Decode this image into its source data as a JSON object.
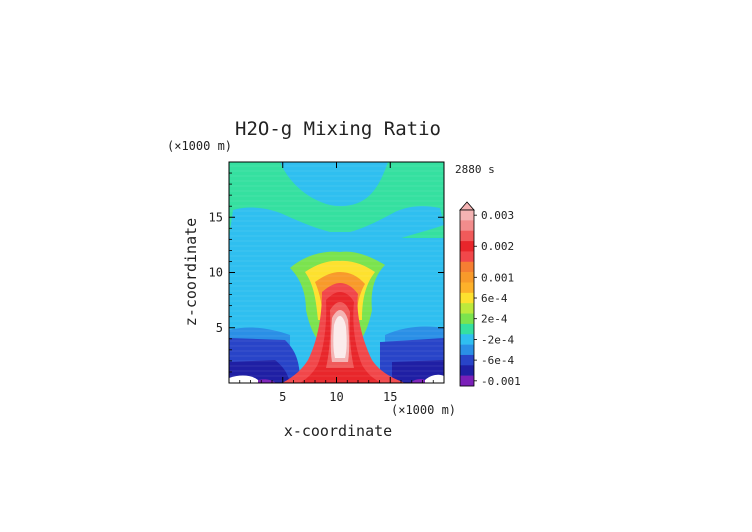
{
  "chart_data": {
    "type": "heatmap",
    "title": "H2O-g Mixing Ratio",
    "xlabel": "x-coordinate",
    "ylabel": "z-coordinate",
    "x_unit": "(×1000 m)",
    "y_unit": "(×1000 m)",
    "time_label": "2880 s",
    "xlim": [
      0,
      20
    ],
    "ylim": [
      0,
      20
    ],
    "x_ticks": [
      5,
      10,
      15
    ],
    "y_ticks": [
      5,
      10,
      15
    ],
    "grid": false,
    "legend_position": "right",
    "colorbar": {
      "levels": [
        {
          "value": 0.003,
          "label": "0.003",
          "color": "#f4b3b3"
        },
        {
          "value": 0.0028,
          "label": "",
          "color": "#f28c8c"
        },
        {
          "value": 0.0024,
          "label": "",
          "color": "#f05a5a"
        },
        {
          "value": 0.002,
          "label": "0.002",
          "color": "#e8262b"
        },
        {
          "value": 0.0016,
          "label": "",
          "color": "#f1474a"
        },
        {
          "value": 0.0012,
          "label": "",
          "color": "#f57e32"
        },
        {
          "value": 0.001,
          "label": "0.001",
          "color": "#f89a2a"
        },
        {
          "value": 0.0008,
          "label": "",
          "color": "#fdb12a"
        },
        {
          "value": 0.0006,
          "label": "6e-4",
          "color": "#fde12f"
        },
        {
          "value": 0.0004,
          "label": "",
          "color": "#bde93c"
        },
        {
          "value": 0.0002,
          "label": "2e-4",
          "color": "#7be34e"
        },
        {
          "value": 0.0,
          "label": "",
          "color": "#35e0a0"
        },
        {
          "value": -0.0002,
          "label": "-2e-4",
          "color": "#2fbff0"
        },
        {
          "value": -0.0004,
          "label": "",
          "color": "#2a8fe6"
        },
        {
          "value": -0.0006,
          "label": "-6e-4",
          "color": "#2844c8"
        },
        {
          "value": -0.0008,
          "label": "",
          "color": "#1f1fa4"
        },
        {
          "value": -0.001,
          "label": "-0.001",
          "color": "#7a1fb8"
        }
      ]
    }
  }
}
